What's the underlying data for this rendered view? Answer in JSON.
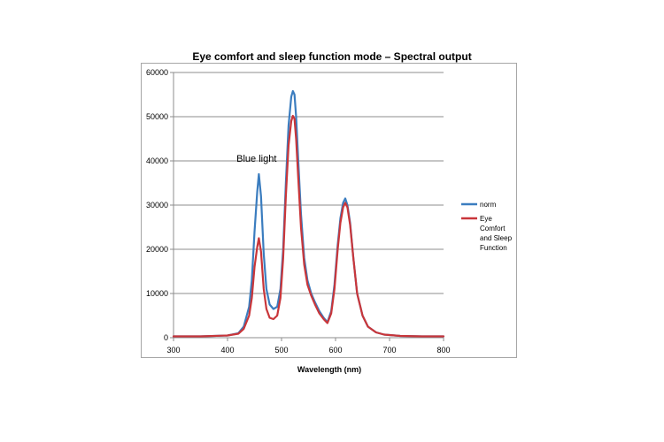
{
  "chart_data": {
    "type": "line",
    "title": "Eye comfort and sleep function mode – Spectral output",
    "xlabel": "Wavelength (nm)",
    "ylabel": "",
    "xlim": [
      300,
      800
    ],
    "ylim": [
      0,
      60000
    ],
    "xticks": [
      300,
      400,
      500,
      600,
      700,
      800
    ],
    "yticks": [
      0,
      10000,
      20000,
      30000,
      40000,
      50000,
      60000
    ],
    "grid": "horizontal",
    "legend_position": "right",
    "annotations": [
      {
        "text": "Blue light",
        "x": 457,
        "y": 37000
      }
    ],
    "series": [
      {
        "name": "norm",
        "color": "#3b7dbf",
        "x": [
          300,
          350,
          400,
          420,
          430,
          440,
          445,
          450,
          455,
          458,
          462,
          467,
          472,
          478,
          485,
          492,
          498,
          503,
          508,
          513,
          518,
          521,
          524,
          527,
          531,
          536,
          542,
          548,
          555,
          562,
          570,
          578,
          585,
          592,
          598,
          604,
          609,
          614,
          618,
          622,
          627,
          633,
          640,
          650,
          660,
          675,
          690,
          720,
          760,
          800
        ],
        "y": [
          300,
          300,
          500,
          1000,
          2500,
          7000,
          13000,
          24000,
          33000,
          37000,
          32000,
          19000,
          11000,
          7500,
          6500,
          7000,
          11000,
          20000,
          35000,
          48000,
          54500,
          55800,
          55000,
          50000,
          40000,
          28000,
          18000,
          13000,
          10000,
          8000,
          6000,
          4500,
          3500,
          6000,
          12000,
          21000,
          27000,
          30500,
          31500,
          30000,
          26000,
          18000,
          10000,
          5000,
          2500,
          1200,
          700,
          400,
          300,
          300
        ]
      },
      {
        "name": "Eye Comfort and Sleep Function",
        "color": "#c9363a",
        "x": [
          300,
          350,
          400,
          420,
          430,
          440,
          445,
          450,
          455,
          458,
          462,
          467,
          472,
          478,
          485,
          492,
          498,
          503,
          508,
          513,
          518,
          521,
          524,
          527,
          531,
          536,
          542,
          548,
          555,
          562,
          570,
          578,
          585,
          592,
          598,
          604,
          609,
          614,
          618,
          622,
          627,
          633,
          640,
          650,
          660,
          675,
          690,
          720,
          760,
          800
        ],
        "y": [
          300,
          300,
          500,
          900,
          2000,
          5000,
          9000,
          16000,
          20500,
          22500,
          19500,
          11000,
          6500,
          4500,
          4200,
          5000,
          9000,
          18000,
          32000,
          43500,
          49000,
          50200,
          49500,
          45000,
          36000,
          25000,
          16500,
          12000,
          9500,
          7500,
          5500,
          4200,
          3300,
          5500,
          11000,
          20000,
          26000,
          29500,
          30500,
          29500,
          25500,
          18000,
          10000,
          5000,
          2500,
          1200,
          700,
          400,
          300,
          300
        ]
      }
    ]
  }
}
